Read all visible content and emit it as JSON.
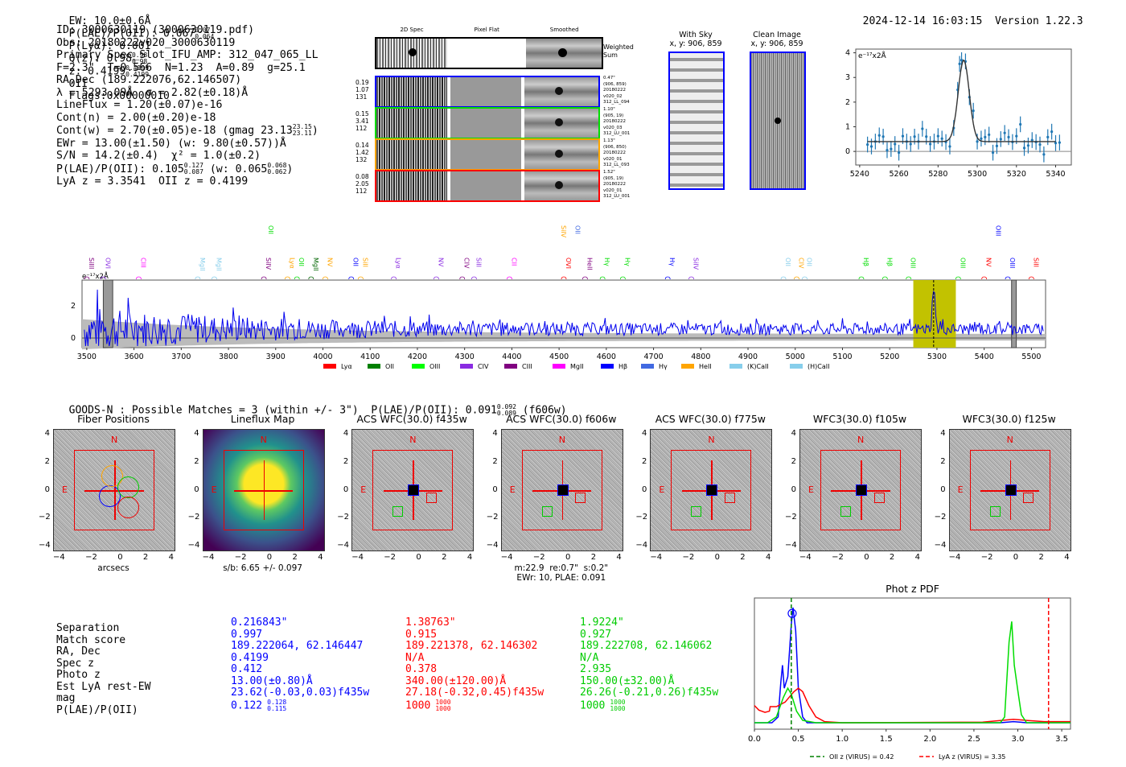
{
  "header": {
    "ew": "EW: 10.0±0.6Å",
    "plae_label": "P(LAE)/P(OII): 0.067",
    "plae_hi": "0.07",
    "plae_lo": "0.064",
    "plya": "P(Lyα): 0.001",
    "qz_label": "Q(z): 0.98",
    "qz_hi": "0.98",
    "qz_lo": "0.98",
    "z_label": "z: 0.4199",
    "z_hi": "0.4199",
    "z_lo": "0.4199",
    "z_line": "OII",
    "flags": "Flags:0x00000010",
    "timestamp": "2024-12-14 16:03:15",
    "version": "Version 1.22.3"
  },
  "info": {
    "id": "ID: 3000630119 (3000630119.pdf)",
    "obs": "Obs: 20180222v020_3000630119",
    "primary": "Primary Spec_Slot_IFU_AMP: 312_047_065_LL",
    "params": "F=2.3\"  T=0.566  N=1.23  A=0.89  g=25.1",
    "radec": "RA,Dec (189.222076,62.146507)",
    "lambda": "λ = 5293.09Å  σ = 2.82(±0.18)Å",
    "lineflux": "LineFlux = 1.20(±0.07)e-16",
    "contn": "Cont(n) = 2.00(±0.20)e-18",
    "contw": "Cont(w) = 2.70(±0.05)e-18 (gmag 23.13",
    "contw_hi": "23.15",
    "contw_lo": "23.11",
    "contw_end": ")",
    "ewr": "EWr = 13.00(±1.50) (w: 9.80(±0.57))Å",
    "sn": "S/N = 14.2(±0.4)  χ² = 1.0(±0.2)",
    "plae": "P(LAE)/P(OII): 0.105",
    "plae_hi": "0.127",
    "plae_lo": "0.087",
    "plae_w": "(w: 0.065",
    "plae_w_hi": "0.068",
    "plae_w_lo": "0.062",
    "plae_w_end": ")",
    "zline": "LyA z = 3.3541  OII z = 0.4199"
  },
  "cutouts": {
    "col_labels": [
      "2D Spec",
      "Pixel Flat",
      "Smoothed"
    ],
    "weighted_sum_label": "Weighted\nSum",
    "rows": [
      {
        "color": "#0000ff",
        "left": [
          "0.19",
          "1.07",
          "131"
        ],
        "right": [
          "0.47\"",
          "(906, 859)",
          "20180222",
          "v020_02",
          "312_LL_094"
        ]
      },
      {
        "color": "#00dd00",
        "left": [
          "0.15",
          "3.41",
          "112"
        ],
        "right": [
          "1.10\"",
          "(905, 19)",
          "20180222",
          "v020_03",
          "312_LU_001"
        ]
      },
      {
        "color": "#ffa500",
        "left": [
          "0.14",
          "1.42",
          "132"
        ],
        "right": [
          "1.13\"",
          "(906, 850)",
          "20180222",
          "v020_01",
          "312_LL_093"
        ]
      },
      {
        "color": "#ff0000",
        "left": [
          "0.08",
          "2.05",
          "112"
        ],
        "right": [
          "1.52\"",
          "(905, 19)",
          "20180222",
          "v020_01",
          "312_LU_001"
        ]
      }
    ]
  },
  "sky": {
    "with_sky_title": "With Sky",
    "with_sky_xy": "x, y: 906, 859",
    "clean_title": "Clean Image",
    "clean_xy": "x, y: 906, 859"
  },
  "chart_data": [
    {
      "type": "scatter",
      "name": "line-fit",
      "ylabel_note": "e⁻¹⁷x2Å",
      "xlim": [
        5238,
        5348
      ],
      "ylim": [
        -0.55,
        4.15
      ],
      "xticks": [
        5240,
        5260,
        5280,
        5300,
        5320,
        5340
      ],
      "yticks": [
        0,
        1,
        2,
        3,
        4
      ],
      "points": [
        [
          5244,
          0.28
        ],
        [
          5246,
          0.2
        ],
        [
          5248,
          0.4
        ],
        [
          5250,
          0.65
        ],
        [
          5252,
          0.6
        ],
        [
          5254,
          0.05
        ],
        [
          5256,
          0.1
        ],
        [
          5258,
          0.3
        ],
        [
          5260,
          -0.05
        ],
        [
          5262,
          0.62
        ],
        [
          5264,
          0.4
        ],
        [
          5266,
          0.3
        ],
        [
          5268,
          0.6
        ],
        [
          5270,
          0.4
        ],
        [
          5272,
          0.92
        ],
        [
          5274,
          0.6
        ],
        [
          5276,
          0.3
        ],
        [
          5278,
          0.4
        ],
        [
          5280,
          0.62
        ],
        [
          5282,
          0.52
        ],
        [
          5284,
          0.38
        ],
        [
          5286,
          0.2
        ],
        [
          5288,
          0.95
        ],
        [
          5290,
          2.5
        ],
        [
          5291,
          3.55
        ],
        [
          5292,
          3.7
        ],
        [
          5294,
          3.65
        ],
        [
          5296,
          2.2
        ],
        [
          5298,
          1.65
        ],
        [
          5300,
          0.4
        ],
        [
          5302,
          0.52
        ],
        [
          5304,
          0.58
        ],
        [
          5306,
          0.68
        ],
        [
          5308,
          -0.05
        ],
        [
          5310,
          0.22
        ],
        [
          5312,
          0.5
        ],
        [
          5314,
          0.75
        ],
        [
          5316,
          0.58
        ],
        [
          5318,
          0.38
        ],
        [
          5320,
          0.62
        ],
        [
          5322,
          1.1
        ],
        [
          5324,
          0.14
        ],
        [
          5326,
          0.24
        ],
        [
          5328,
          0.46
        ],
        [
          5330,
          0.38
        ],
        [
          5332,
          0.28
        ],
        [
          5334,
          -0.12
        ],
        [
          5336,
          0.58
        ],
        [
          5338,
          0.8
        ],
        [
          5340,
          0.34
        ],
        [
          5342,
          0.36
        ]
      ],
      "error": 0.32,
      "fit": {
        "center": 5293.09,
        "sigma": 2.82,
        "amplitude": 3.3,
        "continuum": 0.4,
        "range": [
          5244,
          5340
        ]
      }
    },
    {
      "type": "line",
      "name": "full-spectrum",
      "ylabel_note": "e⁻¹⁷x2Å",
      "xlim": [
        3490,
        5530
      ],
      "ylim": [
        -0.6,
        3.6
      ],
      "xticks": [
        3500,
        3600,
        3700,
        3800,
        3900,
        4000,
        4100,
        4200,
        4300,
        4400,
        4500,
        4600,
        4700,
        4800,
        4900,
        5000,
        5100,
        5200,
        5300,
        5400,
        5500
      ],
      "yticks": [
        0,
        2
      ],
      "highlight_band": [
        5250,
        5340
      ],
      "emission_line_x": 5293,
      "masked_bands": [
        [
          3535,
          3555
        ],
        [
          5458,
          5468
        ]
      ],
      "line_labels_upper": [
        {
          "label": "OII",
          "x": 3880,
          "color": "#00dd00"
        },
        {
          "label": "SiIV",
          "x": 4500,
          "color": "#ffa500"
        },
        {
          "label": "OII",
          "x": 4530,
          "color": "#4169e1"
        },
        {
          "label": "OIII",
          "x": 5420,
          "color": "#0000ff"
        }
      ],
      "line_labels_lower": [
        {
          "label": "SiIII",
          "x": 3500,
          "color": "#800080"
        },
        {
          "label": "OVI",
          "x": 3535,
          "color": "#8a2be2"
        },
        {
          "label": "CIII",
          "x": 3610,
          "color": "#ff00ff"
        },
        {
          "label": "MgII",
          "x": 3735,
          "color": "#87ceeb"
        },
        {
          "label": "MgII",
          "x": 3770,
          "color": "#87ceeb"
        },
        {
          "label": "SiIV",
          "x": 3875,
          "color": "#800080"
        },
        {
          "label": "Lyα",
          "x": 3925,
          "color": "#ffa500"
        },
        {
          "label": "OII",
          "x": 3945,
          "color": "#00dd00"
        },
        {
          "label": "MgII",
          "x": 3975,
          "color": "#006400"
        },
        {
          "label": "NV",
          "x": 4005,
          "color": "#ffa500"
        },
        {
          "label": "OII",
          "x": 4060,
          "color": "#0000ff"
        },
        {
          "label": "SiII",
          "x": 4080,
          "color": "#ffa500"
        },
        {
          "label": "Lyα",
          "x": 4150,
          "color": "#8a2be2"
        },
        {
          "label": "NV",
          "x": 4240,
          "color": "#8a2be2"
        },
        {
          "label": "CIV",
          "x": 4295,
          "color": "#800080"
        },
        {
          "label": "SiII",
          "x": 4320,
          "color": "#8a2be2"
        },
        {
          "label": "CII",
          "x": 4395,
          "color": "#ff00ff"
        },
        {
          "label": "OVI",
          "x": 4510,
          "color": "#ff0000"
        },
        {
          "label": "HeII",
          "x": 4555,
          "color": "#800080"
        },
        {
          "label": "Hγ",
          "x": 4592,
          "color": "#00dd00"
        },
        {
          "label": "Hγ",
          "x": 4635,
          "color": "#00dd00"
        },
        {
          "label": "Hγ",
          "x": 4730,
          "color": "#0000ff"
        },
        {
          "label": "SiIV",
          "x": 4780,
          "color": "#8a2be2"
        },
        {
          "label": "OII",
          "x": 4975,
          "color": "#87ceeb"
        },
        {
          "label": "CIV",
          "x": 5003,
          "color": "#ffa500"
        },
        {
          "label": "OII",
          "x": 5020,
          "color": "#87ceeb"
        },
        {
          "label": "Hβ",
          "x": 5140,
          "color": "#00dd00"
        },
        {
          "label": "Hβ",
          "x": 5190,
          "color": "#00dd00"
        },
        {
          "label": "OIII",
          "x": 5240,
          "color": "#00dd00"
        },
        {
          "label": "OIII",
          "x": 5345,
          "color": "#00dd00"
        },
        {
          "label": "NV",
          "x": 5400,
          "color": "#ff0000"
        },
        {
          "label": "OIII",
          "x": 5450,
          "color": "#0000ff"
        },
        {
          "label": "SiII",
          "x": 5500,
          "color": "#ff0000"
        }
      ],
      "legend": [
        {
          "label": "Lyα",
          "color": "#ff0000"
        },
        {
          "label": "OII",
          "color": "#008000"
        },
        {
          "label": "OIII",
          "color": "#00ff00"
        },
        {
          "label": "CIV",
          "color": "#8a2be2"
        },
        {
          "label": "CIII",
          "color": "#800080"
        },
        {
          "label": "MgII",
          "color": "#ff00ff"
        },
        {
          "label": "Hβ",
          "color": "#0000ff"
        },
        {
          "label": "Hγ",
          "color": "#4169e1"
        },
        {
          "label": "HeII",
          "color": "#ffa500"
        },
        {
          "label": "(K)CaII",
          "color": "#87ceeb"
        },
        {
          "label": "(H)CaII",
          "color": "#87ceeb"
        }
      ],
      "legend_position": "bottom-center"
    },
    {
      "type": "line",
      "name": "phot-z-pdf",
      "title": "Phot z PDF",
      "xlim": [
        0.0,
        3.6
      ],
      "xticks": [
        0.0,
        0.5,
        1.0,
        1.5,
        2.0,
        2.5,
        3.0,
        3.5
      ],
      "series": [
        {
          "name": "blue",
          "color": "#0000ff",
          "points": [
            [
              0,
              0
            ],
            [
              0.2,
              0
            ],
            [
              0.27,
              0.05
            ],
            [
              0.3,
              0.35
            ],
            [
              0.32,
              0.5
            ],
            [
              0.34,
              0.3
            ],
            [
              0.38,
              0.4
            ],
            [
              0.42,
              0.85
            ],
            [
              0.44,
              1.0
            ],
            [
              0.47,
              0.8
            ],
            [
              0.5,
              0.3
            ],
            [
              0.55,
              0.05
            ],
            [
              0.6,
              0
            ],
            [
              2.8,
              0
            ],
            [
              2.95,
              0.01
            ],
            [
              3.1,
              0
            ],
            [
              3.6,
              0
            ]
          ]
        },
        {
          "name": "red",
          "color": "#ff0000",
          "points": [
            [
              0,
              0.15
            ],
            [
              0.05,
              0.11
            ],
            [
              0.12,
              0.09
            ],
            [
              0.17,
              0.1
            ],
            [
              0.18,
              0.14
            ],
            [
              0.25,
              0.14
            ],
            [
              0.35,
              0.18
            ],
            [
              0.45,
              0.27
            ],
            [
              0.5,
              0.3
            ],
            [
              0.55,
              0.27
            ],
            [
              0.62,
              0.15
            ],
            [
              0.7,
              0.05
            ],
            [
              0.8,
              0.01
            ],
            [
              1.0,
              0
            ],
            [
              2.6,
              0.005
            ],
            [
              2.95,
              0.03
            ],
            [
              3.1,
              0.02
            ],
            [
              3.3,
              0.01
            ],
            [
              3.6,
              0.01
            ]
          ]
        },
        {
          "name": "green",
          "color": "#00dd00",
          "points": [
            [
              0,
              0
            ],
            [
              0.15,
              0
            ],
            [
              0.25,
              0.05
            ],
            [
              0.33,
              0.22
            ],
            [
              0.38,
              0.3
            ],
            [
              0.42,
              0.25
            ],
            [
              0.48,
              0.1
            ],
            [
              0.55,
              0.02
            ],
            [
              0.7,
              0
            ],
            [
              2.8,
              0
            ],
            [
              2.85,
              0.05
            ],
            [
              2.9,
              0.7
            ],
            [
              2.93,
              0.88
            ],
            [
              2.96,
              0.5
            ],
            [
              3.0,
              0.28
            ],
            [
              3.04,
              0.07
            ],
            [
              3.1,
              0
            ],
            [
              3.6,
              0
            ]
          ]
        }
      ],
      "vlines": [
        {
          "label": "OII z (VIRUS) = 0.42",
          "x": 0.42,
          "color": "#008000"
        },
        {
          "label": "LyA z (VIRUS) = 3.35",
          "x": 3.35,
          "color": "#ff0000"
        }
      ],
      "marker": {
        "x": 0.43,
        "y": 0.95,
        "color": "#0000ff"
      },
      "legend_position": "bottom-center"
    }
  ],
  "catalog": {
    "summary": "GOODS-N : Possible Matches = 3 (within +/- 3\")  P(LAE)/P(OII): 0.091",
    "summary_hi": "0.092",
    "summary_lo": "0.089",
    "summary_end": "(f606w)",
    "panels": [
      {
        "title": "Fiber Positions",
        "caption": "arcsecs"
      },
      {
        "title": "Lineflux Map",
        "caption": "s/b: 6.65 +/- 0.097"
      },
      {
        "title": "ACS WFC(30.0) f435w",
        "caption": ""
      },
      {
        "title": "ACS WFC(30.0) f606w",
        "caption": "m:22.9  re:0.7\"  s:0.2\"\nEWr: 10, PLAE: 0.091"
      },
      {
        "title": "ACS WFC(30.0) f775w",
        "caption": ""
      },
      {
        "title": "WFC3(30.0) f105w",
        "caption": ""
      },
      {
        "title": "WFC3(30.0) f125w",
        "caption": ""
      }
    ],
    "axis_ticks": [
      "−4",
      "−2",
      "0",
      "2",
      "4"
    ],
    "compass": {
      "north": "N",
      "east": "E"
    }
  },
  "matches": {
    "labels": [
      "Separation",
      "Match score",
      "RA, Dec",
      "Spec z",
      "Photo z",
      "Est LyA rest-EW",
      "mag",
      "P(LAE)/P(OII)"
    ],
    "columns": [
      {
        "color": "#0000ff",
        "values": [
          "0.216843\"",
          "0.997",
          "189.222064, 62.146447",
          "0.4199",
          "0.412",
          "13.00(±0.80)Å",
          "23.62(-0.03,0.03)f435w",
          "0.122"
        ],
        "plae_hi": "0.128",
        "plae_lo": "0.115"
      },
      {
        "color": "#ff0000",
        "values": [
          "1.38763\"",
          "0.915",
          "189.221378, 62.146302",
          "N/A",
          "0.378",
          "340.00(±120.00)Å",
          "27.18(-0.32,0.45)f435w",
          "1000"
        ],
        "plae_hi": "1000",
        "plae_lo": "1000"
      },
      {
        "color": "#00cc00",
        "values": [
          "1.9224\"",
          "0.927",
          "189.222708, 62.146062",
          "N/A",
          "2.935",
          "150.00(±32.00)Å",
          "26.26(-0.21,0.26)f435w",
          "1000"
        ],
        "plae_hi": "1000",
        "plae_lo": "1000"
      }
    ]
  }
}
